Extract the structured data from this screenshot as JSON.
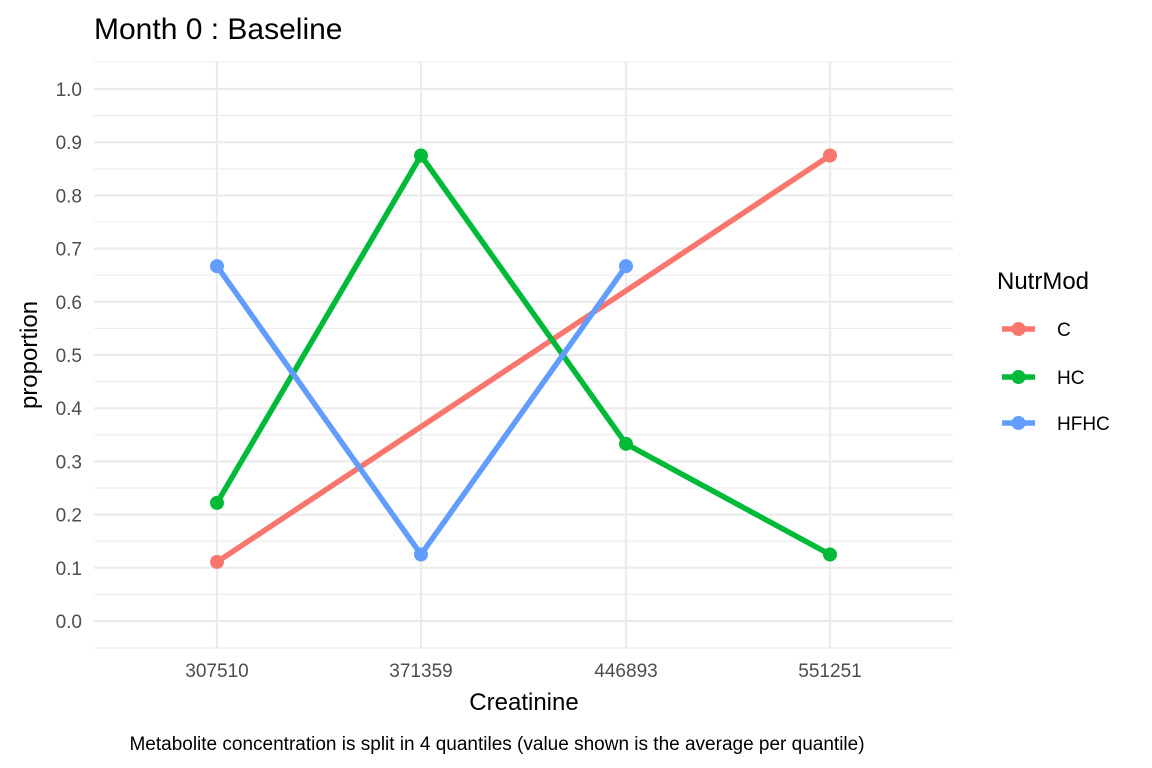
{
  "chart_data": {
    "type": "line",
    "title": "Month 0 : Baseline",
    "xlabel": "Creatinine",
    "ylabel": "proportion",
    "caption": "Metabolite concentration is split in 4 quantiles (value shown is the average per quantile)",
    "categories": [
      "307510",
      "371359",
      "446893",
      "551251"
    ],
    "ylim": [
      0,
      1.0
    ],
    "yticks": [
      "0.0",
      "0.1",
      "0.2",
      "0.3",
      "0.4",
      "0.5",
      "0.6",
      "0.7",
      "0.8",
      "0.9",
      "1.0"
    ],
    "grid": true,
    "legend": {
      "title": "NutrMod",
      "position": "right"
    },
    "series": [
      {
        "name": "C",
        "color": "#F8766D",
        "x": [
          "307510",
          "551251"
        ],
        "values": [
          0.111,
          0.875
        ]
      },
      {
        "name": "HC",
        "color": "#00BA38",
        "x": [
          "307510",
          "371359",
          "446893",
          "551251"
        ],
        "values": [
          0.222,
          0.875,
          0.333,
          0.125
        ]
      },
      {
        "name": "HFHC",
        "color": "#619CFF",
        "x": [
          "307510",
          "371359",
          "446893"
        ],
        "values": [
          0.667,
          0.125,
          0.667
        ]
      }
    ]
  }
}
